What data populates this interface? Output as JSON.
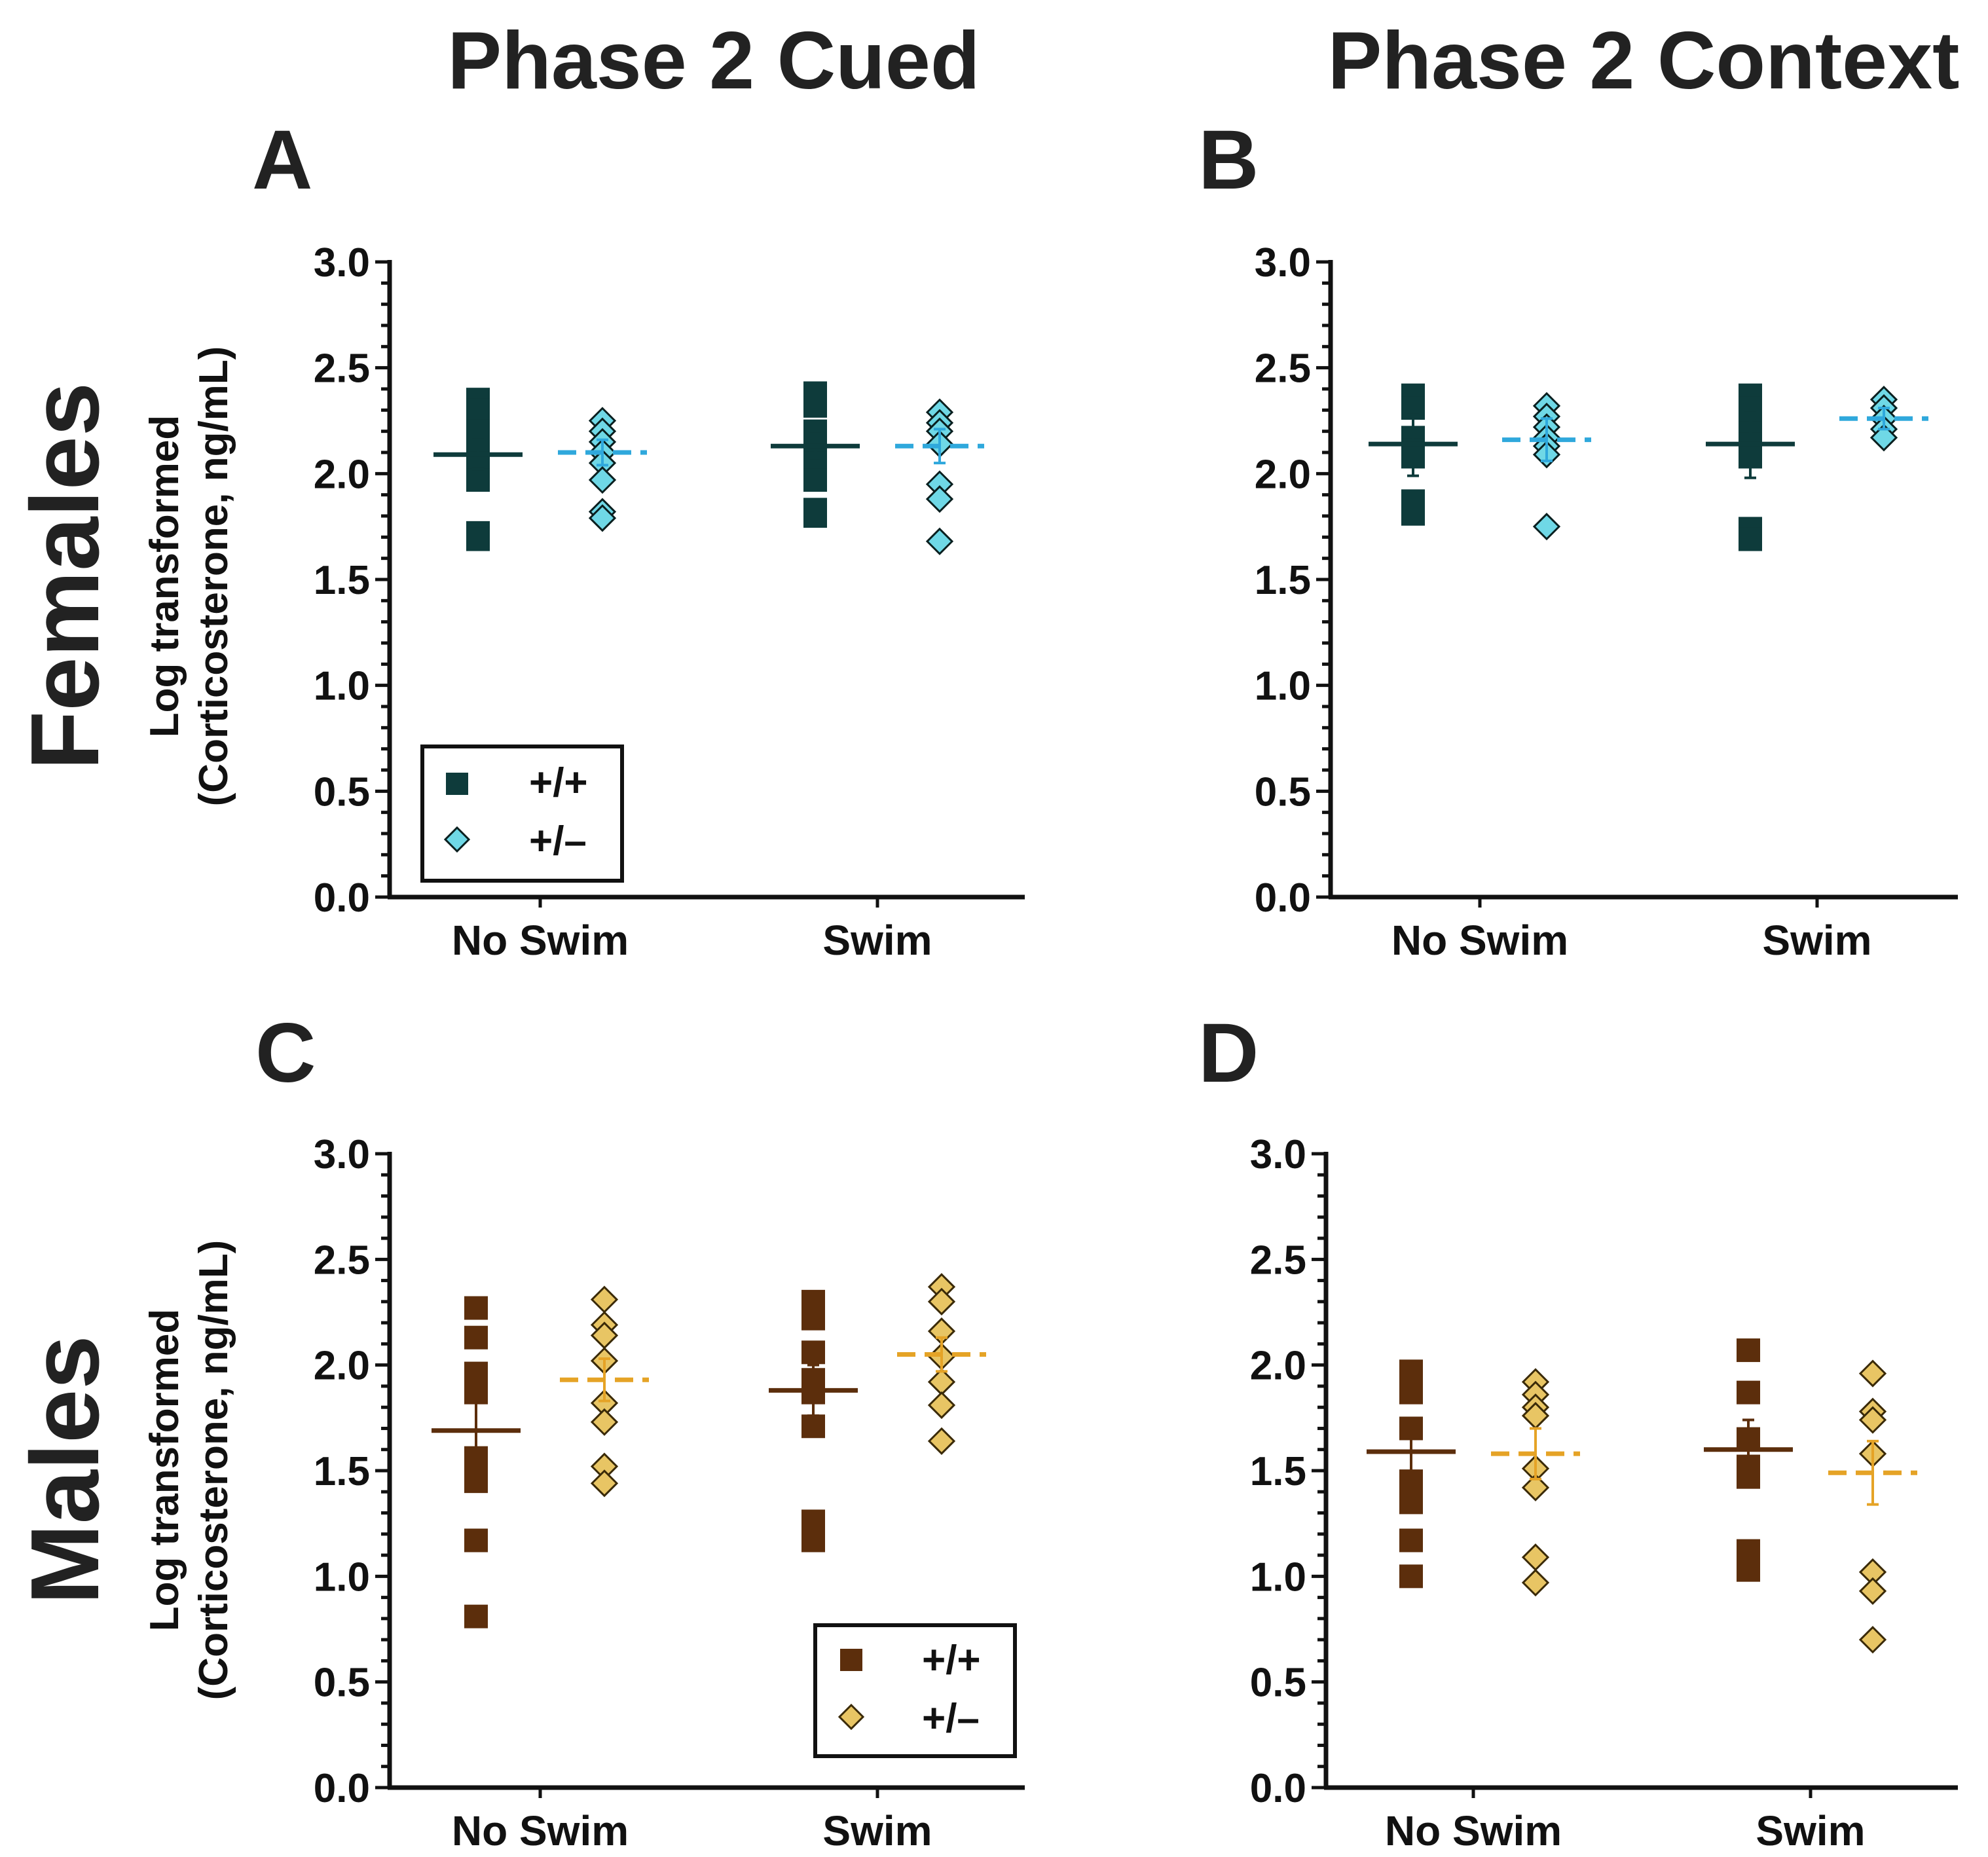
{
  "columns": [
    "Phase 2 Cued",
    "Phase 2 Context"
  ],
  "rows": [
    "Females",
    "Males"
  ],
  "ylabel_line1": "Log transformed",
  "ylabel_line2": "(Corticosterone, ng/mL)",
  "legend": [
    {
      "symbol": "square",
      "label": "+/+"
    },
    {
      "symbol": "diamond",
      "label": "+/–"
    }
  ],
  "colors": {
    "female_wt": "#0e3b3b",
    "female_het_fill": "#6fd8e6",
    "female_het_line": "#2fa8dc",
    "male_wt": "#5c2e0c",
    "male_het_fill": "#e8c564",
    "male_het_line": "#e5a326",
    "axis": "#111111"
  },
  "chart_data": [
    {
      "panel": "A",
      "type": "scatter",
      "title": "Phase 2 Cued",
      "row": "Females",
      "categories": [
        "No Swim",
        "Swim"
      ],
      "ylim": [
        0,
        3
      ],
      "yticks": [
        "0.0",
        "0.5",
        "1.0",
        "1.5",
        "2.0",
        "2.5",
        "3.0"
      ],
      "xlabel": "",
      "ylabel": "Log transformed (Corticosterone, ng/mL)",
      "legend_position": "bottom-left",
      "series": [
        {
          "name": "+/+",
          "marker": "square",
          "means": [
            2.09,
            2.13
          ],
          "sem": [
            0.07,
            0.07
          ],
          "points": [
            [
              2.35,
              2.3,
              2.25,
              2.2,
              2.15,
              2.1,
              2.05,
              2.0,
              1.97,
              1.72,
              1.69
            ],
            [
              2.38,
              2.32,
              2.2,
              2.15,
              2.1,
              2.05,
              1.97,
              1.83,
              1.8
            ]
          ]
        },
        {
          "name": "+/–",
          "marker": "diamond",
          "means": [
            2.1,
            2.13
          ],
          "sem": [
            0.06,
            0.08
          ],
          "points": [
            [
              2.25,
              2.2,
              2.15,
              2.1,
              2.05,
              1.97,
              1.82,
              1.79
            ],
            [
              2.29,
              2.24,
              2.2,
              2.14,
              1.95,
              1.88,
              1.68
            ]
          ]
        }
      ]
    },
    {
      "panel": "B",
      "type": "scatter",
      "title": "Phase 2 Context",
      "row": "Females",
      "categories": [
        "No Swim",
        "Swim"
      ],
      "ylim": [
        0,
        3
      ],
      "yticks": [
        "0.0",
        "0.5",
        "1.0",
        "1.5",
        "2.0",
        "2.5",
        "3.0"
      ],
      "xlabel": "",
      "ylabel": "",
      "legend_position": "none",
      "series": [
        {
          "name": "+/+",
          "marker": "square",
          "means": [
            2.14,
            2.14
          ],
          "sem": [
            0.15,
            0.16
          ],
          "points": [
            [
              2.37,
              2.31,
              2.17,
              2.11,
              2.08,
              1.87,
              1.81
            ],
            [
              2.37,
              2.31,
              2.25,
              2.19,
              2.14,
              2.08,
              1.74,
              1.69
            ]
          ]
        },
        {
          "name": "+/–",
          "marker": "diamond",
          "means": [
            2.16,
            2.26
          ],
          "sem": [
            0.1,
            0.05
          ],
          "points": [
            [
              2.32,
              2.27,
              2.22,
              2.17,
              2.13,
              2.09,
              1.75
            ],
            [
              2.35,
              2.31,
              2.26,
              2.21,
              2.17
            ]
          ]
        }
      ]
    },
    {
      "panel": "C",
      "type": "scatter",
      "title": "Phase 2 Cued",
      "row": "Males",
      "categories": [
        "No Swim",
        "Swim"
      ],
      "ylim": [
        0,
        3
      ],
      "yticks": [
        "0.0",
        "0.5",
        "1.0",
        "1.5",
        "2.0",
        "2.5",
        "3.0"
      ],
      "xlabel": "",
      "ylabel": "Log transformed (Corticosterone, ng/mL)",
      "legend_position": "bottom-right",
      "series": [
        {
          "name": "+/+",
          "marker": "square",
          "means": [
            1.69,
            1.88
          ],
          "sem": [
            0.15,
            0.12
          ],
          "points": [
            [
              2.27,
              2.13,
              1.96,
              1.87,
              1.56,
              1.45,
              1.17,
              0.81
            ],
            [
              2.3,
              2.22,
              2.06,
              1.93,
              1.87,
              1.71,
              1.26,
              1.17
            ]
          ]
        },
        {
          "name": "+/–",
          "marker": "diamond",
          "means": [
            1.93,
            2.05
          ],
          "sem": [
            0.1,
            0.08
          ],
          "points": [
            [
              2.31,
              2.19,
              2.14,
              2.02,
              1.82,
              1.73,
              1.52,
              1.44
            ],
            [
              2.37,
              2.3,
              2.16,
              2.04,
              1.92,
              1.81,
              1.64
            ]
          ]
        }
      ]
    },
    {
      "panel": "D",
      "type": "scatter",
      "title": "Phase 2 Context",
      "row": "Males",
      "categories": [
        "No Swim",
        "Swim"
      ],
      "ylim": [
        0,
        3
      ],
      "yticks": [
        "0.0",
        "0.5",
        "1.0",
        "1.5",
        "2.0",
        "2.5",
        "3.0"
      ],
      "xlabel": "",
      "ylabel": "",
      "legend_position": "none",
      "series": [
        {
          "name": "+/+",
          "marker": "square",
          "means": [
            1.59,
            1.6
          ],
          "sem": [
            0.12,
            0.14
          ],
          "points": [
            [
              1.97,
              1.92,
              1.87,
              1.7,
              1.45,
              1.35,
              1.17,
              1.0
            ],
            [
              2.07,
              1.87,
              1.65,
              1.52,
              1.47,
              1.12,
              1.03
            ]
          ]
        },
        {
          "name": "+/–",
          "marker": "diamond",
          "means": [
            1.58,
            1.49
          ],
          "sem": [
            0.12,
            0.15
          ],
          "points": [
            [
              1.92,
              1.86,
              1.8,
              1.76,
              1.51,
              1.42,
              1.09,
              0.97
            ],
            [
              1.96,
              1.78,
              1.74,
              1.58,
              1.02,
              0.93,
              0.7
            ]
          ]
        }
      ]
    }
  ]
}
